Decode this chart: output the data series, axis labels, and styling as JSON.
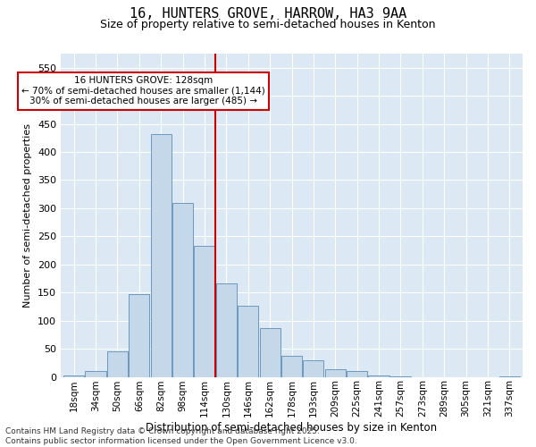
{
  "title1": "16, HUNTERS GROVE, HARROW, HA3 9AA",
  "title2": "Size of property relative to semi-detached houses in Kenton",
  "xlabel": "Distribution of semi-detached houses by size in Kenton",
  "ylabel": "Number of semi-detached properties",
  "categories": [
    "18sqm",
    "34sqm",
    "50sqm",
    "66sqm",
    "82sqm",
    "98sqm",
    "114sqm",
    "130sqm",
    "146sqm",
    "162sqm",
    "178sqm",
    "193sqm",
    "209sqm",
    "225sqm",
    "241sqm",
    "257sqm",
    "273sqm",
    "289sqm",
    "305sqm",
    "321sqm",
    "337sqm"
  ],
  "values": [
    3,
    10,
    45,
    147,
    432,
    310,
    233,
    167,
    127,
    86,
    38,
    30,
    13,
    10,
    2,
    1,
    0,
    0,
    0,
    0,
    1
  ],
  "bar_color": "#c5d8ea",
  "bar_edge_color": "#5b8db8",
  "vline_color": "#cc0000",
  "annotation_title": "16 HUNTERS GROVE: 128sqm",
  "annotation_line1": "← 70% of semi-detached houses are smaller (1,144)",
  "annotation_line2": "30% of semi-detached houses are larger (485) →",
  "ylim_max": 575,
  "yticks": [
    0,
    50,
    100,
    150,
    200,
    250,
    300,
    350,
    400,
    450,
    500,
    550
  ],
  "bg_color": "#dce9f4",
  "footer1": "Contains HM Land Registry data © Crown copyright and database right 2025.",
  "footer2": "Contains public sector information licensed under the Open Government Licence v3.0."
}
